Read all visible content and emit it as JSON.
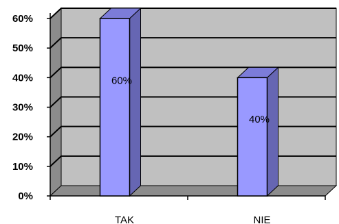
{
  "chart_data": {
    "type": "bar",
    "categories": [
      "TAK",
      "NIE"
    ],
    "values": [
      60,
      40
    ],
    "data_labels": [
      "60%",
      "40%"
    ],
    "title": "",
    "xlabel": "",
    "ylabel": "",
    "ylim": [
      0,
      60
    ],
    "y_ticks": [
      0,
      10,
      20,
      30,
      40,
      50,
      60
    ],
    "y_tick_labels": [
      "0%",
      "10%",
      "20%",
      "30%",
      "40%",
      "50%",
      "60%"
    ],
    "grid": true,
    "legend": "none",
    "colors": {
      "bar_front": "#9999ff",
      "bar_side": "#6666b3",
      "bar_top": "#7c7cd9",
      "wall": "#c0c0c0",
      "wall_side": "#8c8c8c",
      "floor": "#8c8c8c",
      "gridline": "#000000"
    }
  }
}
